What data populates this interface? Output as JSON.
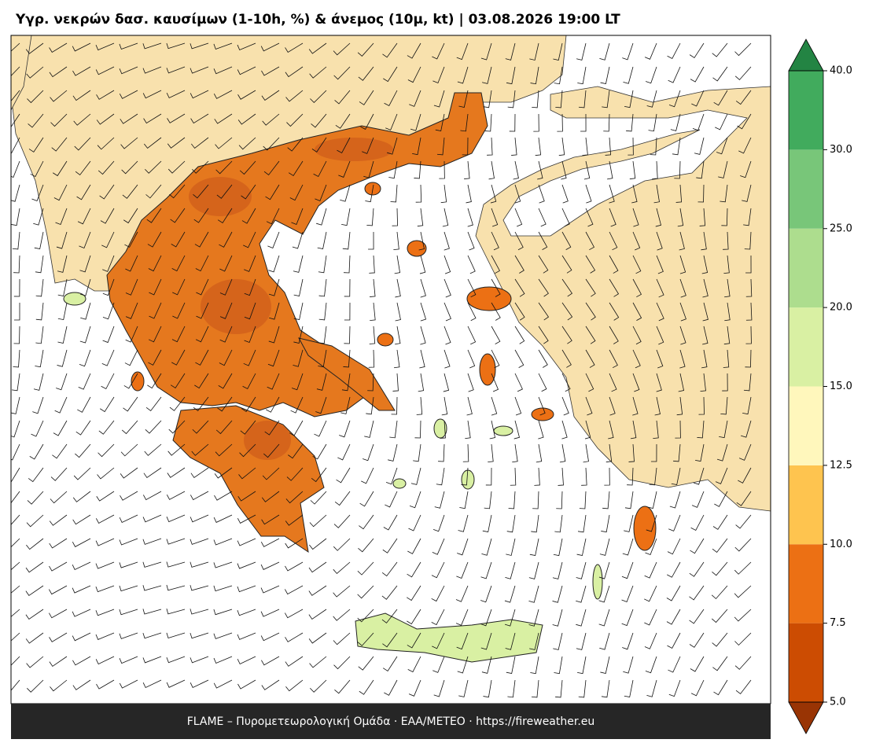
{
  "header": {
    "title": "Υγρ. νεκρών δασ. καυσίμων (1-10h, %) & άνεμος (10μ, kt)  |  03.08.2026 19:00 LT"
  },
  "footer": {
    "text": "FLAME – Πυρομετεωρολογική Ομάδα · ΕΑΑ/METEO · https://fireweather.eu"
  },
  "colorbar": {
    "ticks": [
      {
        "value": 5,
        "label": "5.0"
      },
      {
        "value": 7.5,
        "label": "7.5"
      },
      {
        "value": 10,
        "label": "10.0"
      },
      {
        "value": 12.5,
        "label": "12.5"
      },
      {
        "value": 15,
        "label": "15.0"
      },
      {
        "value": 20,
        "label": "20.0"
      },
      {
        "value": 25,
        "label": "25.0"
      },
      {
        "value": 30,
        "label": "30.0"
      },
      {
        "value": 40,
        "label": "40.0"
      }
    ],
    "colors": [
      "#cc4c02",
      "#ec7014",
      "#fec44f",
      "#fff7bc",
      "#d9f0a3",
      "#addd8e",
      "#78c679",
      "#41ab5d"
    ],
    "under_color": "#993404",
    "over_color": "#238443"
  }
}
